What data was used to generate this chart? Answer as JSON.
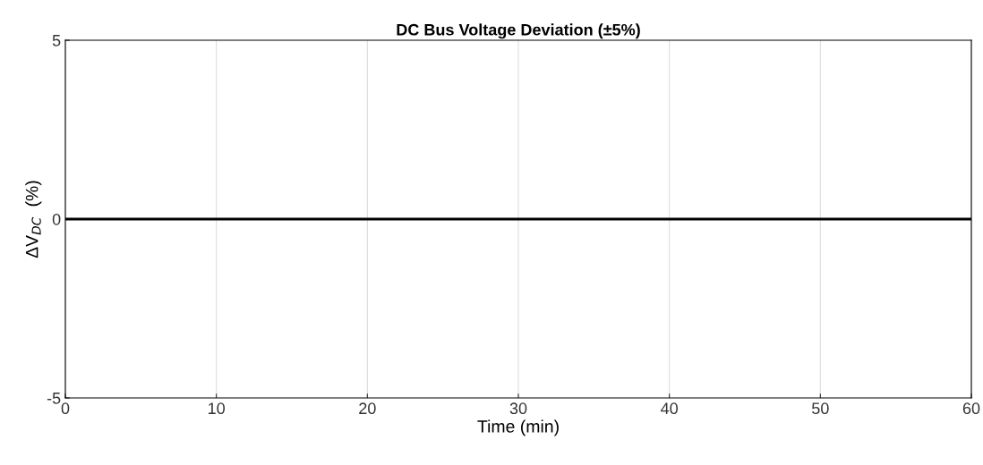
{
  "chart_data": {
    "type": "line",
    "title": "DC Bus Voltage Deviation (±5%)",
    "xlabel": "Time (min)",
    "ylabel": "ΔV$_{DC}$  (%)",
    "x": [
      0,
      60
    ],
    "series": [
      {
        "color": "#000000",
        "values": [
          0,
          0
        ]
      }
    ],
    "xlim": [
      0,
      60
    ],
    "xticks": [
      0,
      10,
      20,
      30,
      40,
      50,
      60
    ],
    "ylim": [
      -5,
      5
    ],
    "yticks": [
      -5,
      0,
      5
    ],
    "grid": "x",
    "line_style": "solid"
  }
}
